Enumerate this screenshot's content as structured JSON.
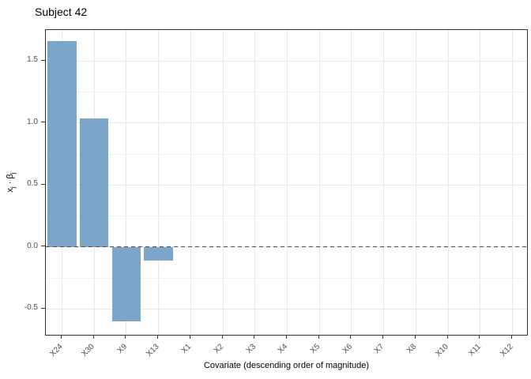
{
  "chart_data": {
    "type": "bar",
    "title": "Subject 42",
    "xlabel": "Covariate (descending order of magnitude)",
    "ylabel": "x_j · β_j",
    "ylabel_parts": {
      "base1": "x",
      "sub1": "j",
      "dot": " · ",
      "base2": "β",
      "sub2": "j"
    },
    "categories": [
      "X24",
      "X30",
      "X9",
      "X13",
      "X1",
      "X2",
      "X3",
      "X4",
      "X5",
      "X6",
      "X7",
      "X8",
      "X10",
      "X11",
      "X12"
    ],
    "values": [
      1.66,
      1.04,
      -0.6,
      -0.11,
      0,
      0,
      0,
      0,
      0,
      0,
      0,
      0,
      0,
      0,
      0
    ],
    "ylim": [
      -0.72,
      1.75
    ],
    "yticks": [
      1.5,
      1.0,
      0.5,
      0.0,
      -0.5
    ],
    "ytick_labels": [
      "1.5",
      "1.0",
      "0.5",
      "0.0",
      "-0.5"
    ],
    "yminor": [
      1.25,
      0.75,
      0.25,
      -0.25
    ],
    "zero_line": {
      "value": 0,
      "style": "dashed",
      "color": "#4d4d4d"
    },
    "grid": true,
    "legend": "none",
    "colors": {
      "bar_fill": "#7BA5C9",
      "panel_border": "#333333",
      "grid_major": "#e8e8e8",
      "grid_minor": "#f2f2f2",
      "axis_text": "#4d4d4d",
      "title_text": "#000000",
      "background": "#ffffff"
    }
  }
}
